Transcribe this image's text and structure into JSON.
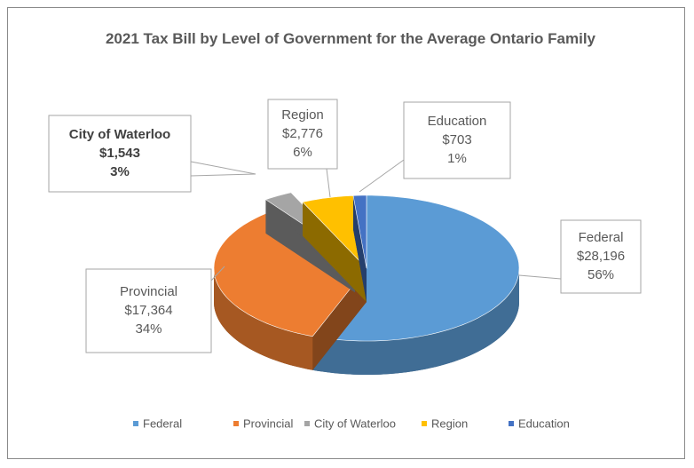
{
  "chart_data": {
    "type": "pie3d",
    "title": "2021 Tax Bill by Level of Government for the Average Ontario Family",
    "categories": [
      "Federal",
      "Provincial",
      "City of Waterloo",
      "Region",
      "Education"
    ],
    "values": [
      28196,
      17364,
      1543,
      2776,
      703
    ],
    "value_labels": [
      "$28,196",
      "$17,364",
      "$1,543",
      "$2,776",
      "$703"
    ],
    "percents": [
      56,
      34,
      3,
      6,
      1
    ],
    "percent_labels": [
      "56%",
      "34%",
      "3%",
      "6%",
      "1%"
    ],
    "colors": [
      "#5b9bd5",
      "#ed7d31",
      "#a5a5a5",
      "#ffc000",
      "#4472c4"
    ],
    "exploded": [
      false,
      false,
      true,
      false,
      false
    ],
    "legend": "bottom"
  }
}
